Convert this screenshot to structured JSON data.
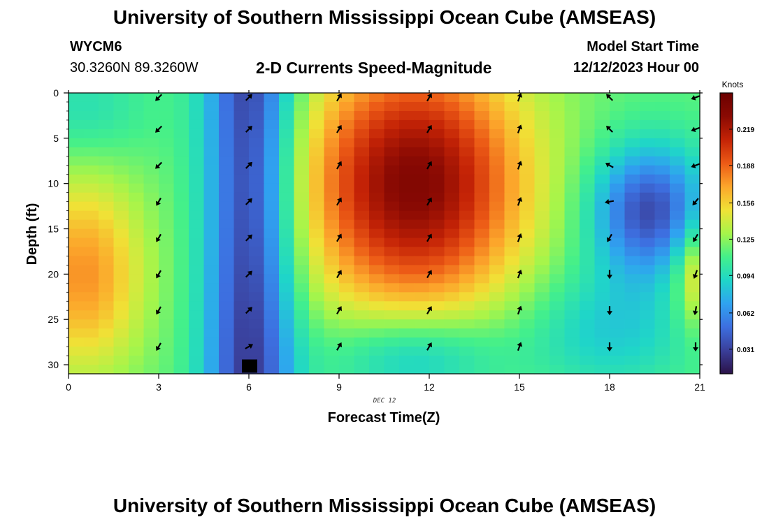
{
  "header": {
    "title": "University of Southern Mississippi Ocean Cube (AMSEAS)",
    "station_id": "WYCM6",
    "station_location": "30.3260N  89.3260W",
    "subtitle": "2-D Currents Speed-Magnitude",
    "model_start_label": "Model Start Time",
    "model_start_value": "12/12/2023 Hour 00"
  },
  "footer": {
    "title": "University of Southern Mississippi Ocean Cube (AMSEAS)"
  },
  "chart_data": {
    "type": "heatmap",
    "title": "2-D Currents Speed-Magnitude",
    "xlabel": "Forecast Time(Z)",
    "ylabel": "Depth (ft)",
    "date_label": "DEC 12",
    "x_range": [
      0,
      21
    ],
    "y_range": [
      0,
      31
    ],
    "x_ticks": [
      0,
      3,
      6,
      9,
      12,
      15,
      18,
      21
    ],
    "y_ticks": [
      0,
      5,
      10,
      15,
      20,
      25,
      30
    ],
    "colorbar": {
      "unit_label": "Knots",
      "min": 0.01,
      "max": 0.25,
      "tick_values": [
        0.031,
        0.062,
        0.094,
        0.125,
        0.156,
        0.188,
        0.219
      ],
      "colors": [
        "#2b1248",
        "#3a3f9a",
        "#3d6fe0",
        "#2fa3f0",
        "#1fd6c8",
        "#44f08a",
        "#a6f54a",
        "#f0e236",
        "#fca52b",
        "#ec5a16",
        "#c42306",
        "#8a0a03",
        "#6b0000"
      ]
    },
    "arrow_columns": [
      {
        "x": 3,
        "angles": [
          225,
          225,
          225,
          210,
          210,
          210,
          210,
          210
        ]
      },
      {
        "x": 6,
        "angles": [
          45,
          45,
          45,
          45,
          45,
          45,
          45,
          60
        ]
      },
      {
        "x": 9,
        "angles": [
          30,
          30,
          30,
          30,
          30,
          30,
          30,
          30
        ]
      },
      {
        "x": 12,
        "angles": [
          30,
          30,
          30,
          30,
          30,
          30,
          30,
          30
        ]
      },
      {
        "x": 15,
        "angles": [
          20,
          20,
          20,
          20,
          20,
          20,
          20,
          20
        ]
      },
      {
        "x": 18,
        "angles": [
          315,
          315,
          300,
          260,
          210,
          180,
          180,
          180
        ]
      },
      {
        "x": 21,
        "angles": [
          250,
          250,
          250,
          220,
          210,
          200,
          190,
          180
        ]
      }
    ],
    "arrow_depths": [
      0.5,
      4,
      8,
      12,
      16,
      20,
      24,
      28
    ],
    "missing_cell": {
      "x": 6,
      "depth": 30.5,
      "note": "no data"
    }
  }
}
